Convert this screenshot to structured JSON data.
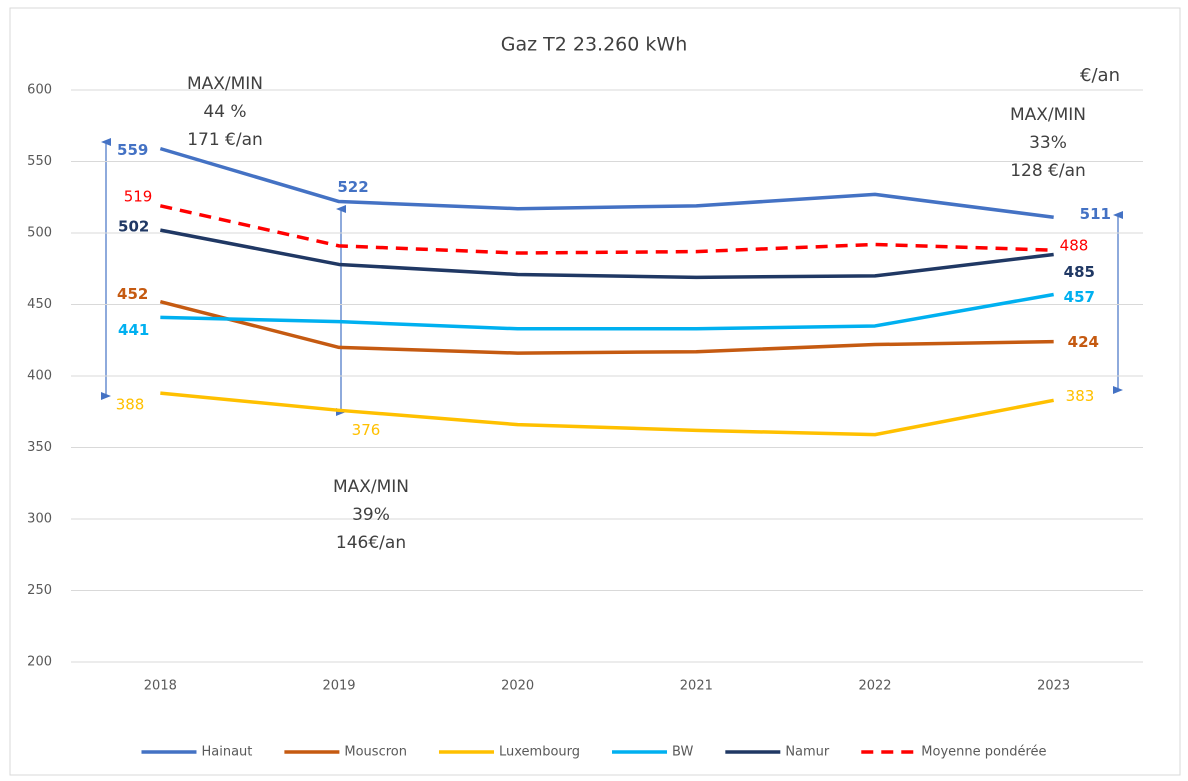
{
  "chart_data": {
    "type": "line",
    "title": "Gaz T2 23.260 kWh",
    "unit_label": "€/an",
    "categories": [
      "2018",
      "2019",
      "2020",
      "2021",
      "2022",
      "2023"
    ],
    "series": [
      {
        "name": "Hainaut",
        "color": "#4472c4",
        "values": [
          559,
          522,
          517,
          519,
          527,
          511
        ],
        "labeled": [
          0,
          1,
          5
        ],
        "bold": true
      },
      {
        "name": "Mouscron",
        "color": "#c55a11",
        "values": [
          452,
          420,
          416,
          417,
          422,
          424
        ],
        "labeled": [
          0,
          5
        ],
        "bold": true
      },
      {
        "name": "Luxembourg",
        "color": "#ffc000",
        "values": [
          388,
          376,
          366,
          362,
          359,
          383
        ],
        "labeled": [
          0,
          1,
          5
        ],
        "bold": false
      },
      {
        "name": "BW",
        "color": "#00b0f0",
        "values": [
          441,
          438,
          433,
          433,
          435,
          457
        ],
        "labeled": [
          0,
          5
        ],
        "bold": true
      },
      {
        "name": "Namur",
        "color": "#203864",
        "values": [
          502,
          478,
          471,
          469,
          470,
          485
        ],
        "labeled": [
          0,
          5
        ],
        "bold": true
      },
      {
        "name": "Moyenne pondérée",
        "color": "#ff0000",
        "values": [
          519,
          491,
          486,
          487,
          492,
          488
        ],
        "labeled": [
          0,
          5
        ],
        "bold": false,
        "dash": true
      }
    ],
    "ylim": [
      200,
      600
    ],
    "yticks": [
      200,
      250,
      300,
      350,
      400,
      450,
      500,
      550,
      600
    ],
    "grid": true,
    "legend": "bottom",
    "annotations": [
      {
        "lines": [
          "MAX/MIN",
          "44 %",
          "171 €/an"
        ]
      },
      {
        "lines": [
          "MAX/MIN",
          "39%",
          "146€/an"
        ]
      },
      {
        "lines": [
          "MAX/MIN",
          "33%",
          "128 €/an"
        ]
      }
    ]
  }
}
